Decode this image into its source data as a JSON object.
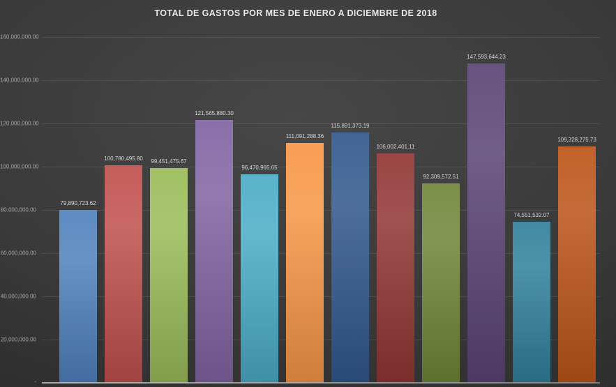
{
  "chart_data": {
    "type": "bar",
    "title": "TOTAL DE GASTOS POR MES DE ENERO A DICIEMBRE DE 2018",
    "values": [
      79890723.62,
      100780495.8,
      99451475.67,
      121565880.3,
      96470965.65,
      111091288.36,
      115891373.19,
      106002401.11,
      92309572.51,
      147593644.23,
      74551532.07,
      109328275.73
    ],
    "value_labels": [
      "79,890,723.62",
      "100,780,495.80",
      "99,451,475.67",
      "121,565,880.30",
      "96,470,965.65",
      "111,091,288.36",
      "115,891,373.19",
      "106,002,401.11",
      "92,309,572.51",
      "147,593,644.23",
      "74,551,532.07",
      "109,328,275.73"
    ],
    "bar_colors": [
      "#4F81BD",
      "#C0504D",
      "#9BBB59",
      "#8064A2",
      "#4BACC6",
      "#F79646",
      "#31588C",
      "#903634",
      "#6E8639",
      "#5A4474",
      "#31809A",
      "#BC5419"
    ],
    "xlabel": "",
    "ylabel": "",
    "ylim": [
      0,
      160000000
    ],
    "y_tick_step": 20000000,
    "y_tick_labels": [
      "-",
      "20,000,000.00",
      "40,000,000.00",
      "60,000,000.00",
      "80,000,000.00",
      "100,000,000.00",
      "120,000,000.00",
      "140,000,000.00",
      "160,000,000.00"
    ],
    "grid": true,
    "legend": false,
    "x_tick_labels_visible": false,
    "theme": {
      "background": "#3a3a3a",
      "title_color": "#e8e8e6",
      "label_color": "#d6d6d4",
      "axis_label_color": "#a6a6a6",
      "gridline_color": "#4a4a4a",
      "axis_line_color": "#b5b5b5"
    }
  }
}
